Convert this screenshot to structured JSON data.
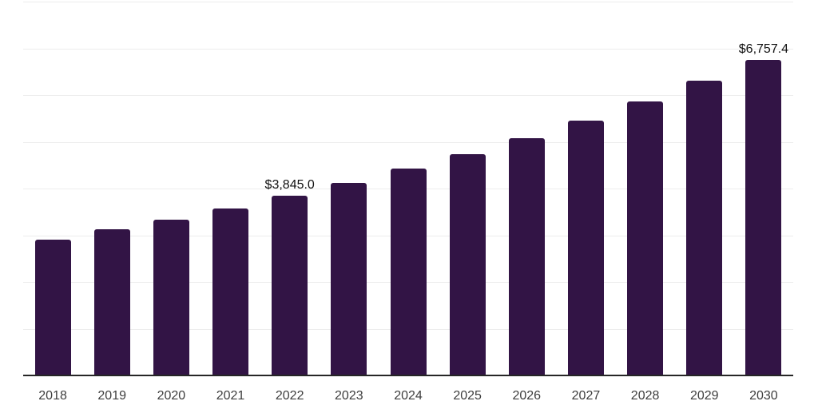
{
  "chart_data": {
    "type": "bar",
    "title": "",
    "categories": [
      "2018",
      "2019",
      "2020",
      "2021",
      "2022",
      "2023",
      "2024",
      "2025",
      "2026",
      "2027",
      "2028",
      "2029",
      "2030"
    ],
    "values": [
      2910,
      3125,
      3340,
      3575,
      3845.0,
      4120,
      4430,
      4735,
      5075,
      5445,
      5870,
      6300,
      6757.4
    ],
    "annotations": [
      {
        "category": "2022",
        "text": "$3,845.0"
      },
      {
        "category": "2030",
        "text": "$6,757.4"
      }
    ],
    "xlabel": "",
    "ylabel": "",
    "ylim": [
      0,
      8000
    ],
    "gridline_step": 1000,
    "grid": "horizontal",
    "legend": "none",
    "value_prefix": "$"
  },
  "colors": {
    "bar": "#321445",
    "gridline": "#ededed",
    "axis_line": "#262626",
    "tick_text": "#3d3d3d",
    "data_label_text": "#111111",
    "background": "#ffffff"
  }
}
